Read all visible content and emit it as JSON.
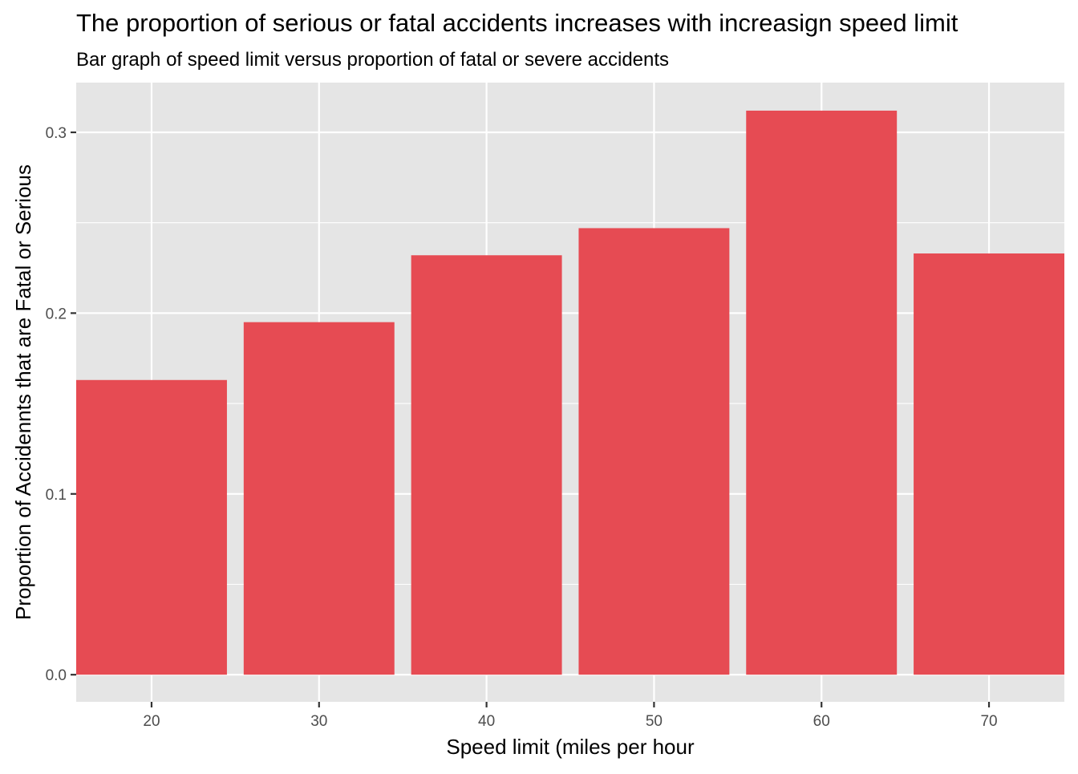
{
  "chart_data": {
    "type": "bar",
    "title": "The proportion of serious or fatal accidents increases with increasign speed limit",
    "subtitle": "Bar graph of speed limit versus proportion of fatal or severe accidents",
    "xlabel": "Speed limit (miles per hour",
    "ylabel": "Proportion of Accidennts that are Fatal or Serious",
    "categories": [
      "20",
      "30",
      "40",
      "50",
      "60",
      "70"
    ],
    "x": [
      20,
      30,
      40,
      50,
      60,
      70
    ],
    "values": [
      0.163,
      0.195,
      0.232,
      0.247,
      0.312,
      0.233
    ],
    "xlim": [
      15.5,
      74.5
    ],
    "ylim": [
      -0.015,
      0.3275
    ],
    "y_ticks": [
      0.0,
      0.1,
      0.2,
      0.3
    ],
    "y_tick_labels": [
      "0.0",
      "0.1",
      "0.2",
      "0.3"
    ],
    "grid": true,
    "colors": {
      "bar": "#e64b53",
      "panel": "#e5e5e5",
      "grid": "#ffffff",
      "tick_label": "#4d4d4d",
      "text": "#000000"
    }
  }
}
